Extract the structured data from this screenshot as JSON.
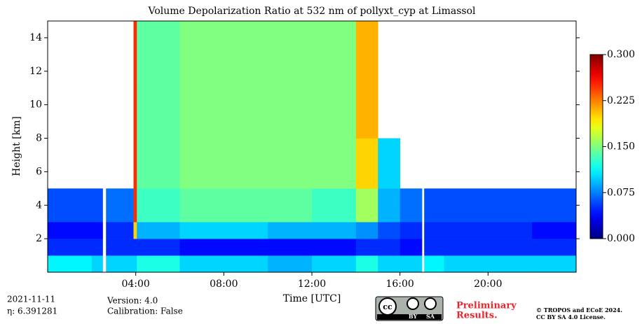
{
  "chart_data": {
    "type": "heatmap",
    "title": "Volume Depolarization Ratio at 532 nm of pollyxt_cyp at Limassol",
    "x_label": "Time [UTC]",
    "y_label": "Height [km]",
    "xlim": [
      0,
      24
    ],
    "ylim": [
      0,
      15
    ],
    "xticks": [
      {
        "value": 4,
        "label": "04:00"
      },
      {
        "value": 8,
        "label": "08:00"
      },
      {
        "value": 12,
        "label": "12:00"
      },
      {
        "value": 16,
        "label": "16:00"
      },
      {
        "value": 20,
        "label": "20:00"
      }
    ],
    "yticks": [
      2,
      4,
      6,
      8,
      10,
      12,
      14
    ],
    "x_edges": [
      0,
      1,
      2,
      2.5,
      2.65,
      3.9,
      4.05,
      6,
      8,
      10,
      12,
      14,
      15,
      16,
      17,
      17.1,
      18,
      20,
      22,
      24
    ],
    "y_edges": [
      0,
      1,
      2,
      3,
      5,
      8,
      11,
      15
    ],
    "z": [
      [
        0.11,
        0.11,
        0.1,
        null,
        0.1,
        0.1,
        0.12,
        0.1,
        0.1,
        0.09,
        0.1,
        0.12,
        0.1,
        0.1,
        null,
        0.11,
        0.1,
        0.1,
        0.1
      ],
      [
        0.05,
        0.05,
        0.05,
        null,
        0.05,
        0.05,
        0.05,
        0.04,
        0.04,
        0.04,
        0.04,
        0.05,
        0.05,
        0.04,
        null,
        0.05,
        0.05,
        0.05,
        0.05
      ],
      [
        0.04,
        0.04,
        0.04,
        null,
        0.05,
        0.2,
        0.09,
        0.1,
        0.1,
        0.09,
        0.09,
        0.08,
        0.06,
        0.05,
        null,
        0.05,
        0.05,
        0.05,
        0.04
      ],
      [
        0.06,
        0.06,
        0.06,
        null,
        0.07,
        0.25,
        0.13,
        0.14,
        0.14,
        0.14,
        0.13,
        0.16,
        0.09,
        0.07,
        null,
        0.06,
        0.06,
        0.06,
        0.06
      ],
      [
        null,
        null,
        null,
        null,
        null,
        0.25,
        0.14,
        0.15,
        0.15,
        0.15,
        0.15,
        0.2,
        0.1,
        null,
        null,
        null,
        null,
        null,
        null
      ],
      [
        null,
        null,
        null,
        null,
        null,
        0.25,
        0.14,
        0.15,
        0.15,
        0.15,
        0.15,
        0.21,
        null,
        null,
        null,
        null,
        null,
        null,
        null
      ],
      [
        null,
        null,
        null,
        null,
        null,
        0.25,
        0.14,
        0.15,
        0.15,
        0.15,
        0.15,
        0.21,
        null,
        null,
        null,
        null,
        null,
        null,
        null
      ]
    ],
    "colormap": "jet",
    "clim": [
      0,
      0.3
    ],
    "cticks": [
      {
        "value": 0,
        "label": "0.000"
      },
      {
        "value": 0.075,
        "label": "0.075"
      },
      {
        "value": 0.15,
        "label": "0.150"
      },
      {
        "value": 0.225,
        "label": "0.225"
      },
      {
        "value": 0.3,
        "label": "0.300"
      }
    ],
    "date": "2021-11-11",
    "eta": "η: 6.391281",
    "version": "Version: 4.0",
    "calibration": "Calibration: False",
    "preliminary": [
      "Preliminary",
      "Results."
    ],
    "copyright": [
      "© TROPOS and ECoE 2024.",
      "CC BY SA 4.0 License."
    ],
    "badge_labels": [
      "BY",
      "SA"
    ]
  }
}
